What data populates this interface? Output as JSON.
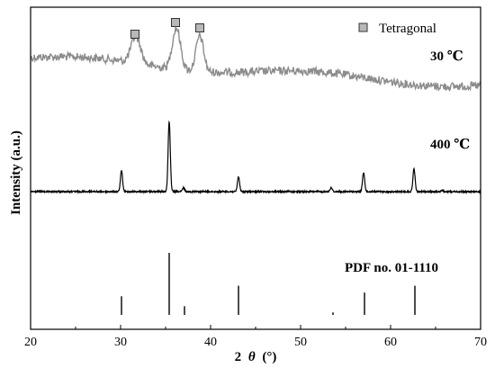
{
  "chart_data": {
    "type": "line",
    "xlabel_prefix": "2",
    "xlabel_symbol": "θ",
    "xlabel_unit": "(°)",
    "ylabel": "Intensity (a.u.)",
    "xlim": [
      20,
      70
    ],
    "xticks": [
      20,
      30,
      40,
      50,
      60,
      70
    ],
    "y_ticks_shown": false,
    "grid": false,
    "colors": {
      "trace_30C": "#8c8c8c",
      "trace_400C": "#000000",
      "pdf_lines": "#000000",
      "marker_fill": "#b8b8b8"
    },
    "legend": {
      "marker": "square",
      "label": "Tetragonal",
      "placement": "top-right"
    },
    "series": [
      {
        "name": "30 ℃",
        "baseline": 0.92,
        "peaks": [
          {
            "x": 31.7,
            "height": 0.09,
            "width": 0.75
          },
          {
            "x": 36.2,
            "height": 0.14,
            "width": 0.65
          },
          {
            "x": 38.8,
            "height": 0.12,
            "width": 0.6
          }
        ]
      },
      {
        "name": "400 ℃",
        "baseline": 0.02,
        "peaks": [
          {
            "x": 30.1,
            "height": 0.21
          },
          {
            "x": 35.4,
            "height": 0.71
          },
          {
            "x": 37.0,
            "height": 0.04
          },
          {
            "x": 43.1,
            "height": 0.15
          },
          {
            "x": 53.4,
            "height": 0.04
          },
          {
            "x": 57.0,
            "height": 0.19
          },
          {
            "x": 62.6,
            "height": 0.23
          },
          {
            "x": 65.7,
            "height": 0.01
          }
        ]
      }
    ],
    "reference": {
      "name": "PDF no. 01-1110",
      "lines": [
        {
          "x": 30.1,
          "height": 0.3
        },
        {
          "x": 35.4,
          "height": 1.0
        },
        {
          "x": 37.1,
          "height": 0.14
        },
        {
          "x": 43.1,
          "height": 0.47
        },
        {
          "x": 53.6,
          "height": 0.04
        },
        {
          "x": 57.1,
          "height": 0.36
        },
        {
          "x": 62.7,
          "height": 0.47
        }
      ]
    },
    "tetragonal_markers_x": [
      31.6,
      36.1,
      38.8
    ]
  }
}
